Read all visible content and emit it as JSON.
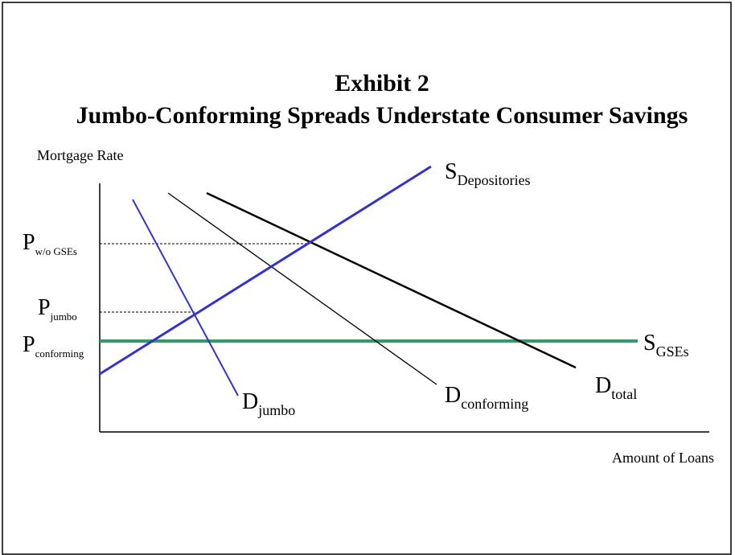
{
  "header": {
    "title_line1": "Exhibit 2",
    "title_line2": "Jumbo-Conforming Spreads Understate Consumer Savings"
  },
  "axes": {
    "y_label": "Mortgage Rate",
    "x_label": "Amount of Loans"
  },
  "curves": [
    {
      "symbol": "S",
      "subscript": "Depositories"
    },
    {
      "symbol": "D",
      "subscript": "jumbo"
    },
    {
      "symbol": "D",
      "subscript": "conforming"
    },
    {
      "symbol": "D",
      "subscript": "total"
    },
    {
      "symbol": "S",
      "subscript": "GSEs"
    }
  ],
  "prices": [
    {
      "symbol": "P",
      "subscript": "w/o GSEs"
    },
    {
      "symbol": "P",
      "subscript": "jumbo"
    },
    {
      "symbol": "P",
      "subscript": "conforming"
    }
  ]
}
